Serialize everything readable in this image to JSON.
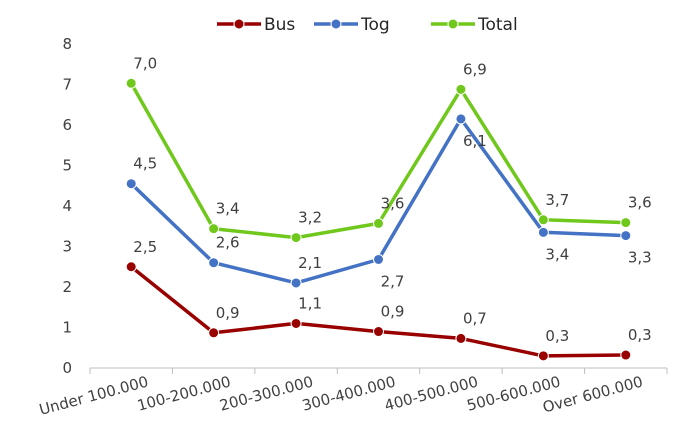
{
  "chart_data": {
    "type": "line",
    "title": "",
    "xlabel": "",
    "ylabel": "",
    "ylim": [
      0,
      8
    ],
    "yticks": [
      "0",
      "1",
      "2",
      "3",
      "4",
      "5",
      "6",
      "7",
      "8"
    ],
    "grid": false,
    "legend_position": "top",
    "categories": [
      "Under 100.000",
      "100-200.000",
      "200-300.000",
      "300-400.000",
      "400-500.000",
      "500-600.000",
      "Over 600.000"
    ],
    "series": [
      {
        "name": "Bus",
        "color": "#990000",
        "values": [
          2.5,
          0.87,
          1.1,
          0.9,
          0.73,
          0.3,
          0.32
        ],
        "labels": [
          "2,5",
          "0,9",
          "1,1",
          "0,9",
          "0,7",
          "0,3",
          "0,3"
        ]
      },
      {
        "name": "Tog",
        "color": "#4472c4",
        "values": [
          4.55,
          2.6,
          2.1,
          2.68,
          6.15,
          3.35,
          3.27
        ],
        "labels": [
          "4,5",
          "2,6",
          "2,1",
          "2,7",
          "6,1",
          "3,4",
          "3,3"
        ]
      },
      {
        "name": "Total",
        "color": "#70c81c",
        "values": [
          7.03,
          3.44,
          3.22,
          3.57,
          6.88,
          3.66,
          3.59
        ],
        "labels": [
          "7,0",
          "3,4",
          "3,2",
          "3,6",
          "6,9",
          "3,7",
          "3,6"
        ]
      }
    ]
  }
}
